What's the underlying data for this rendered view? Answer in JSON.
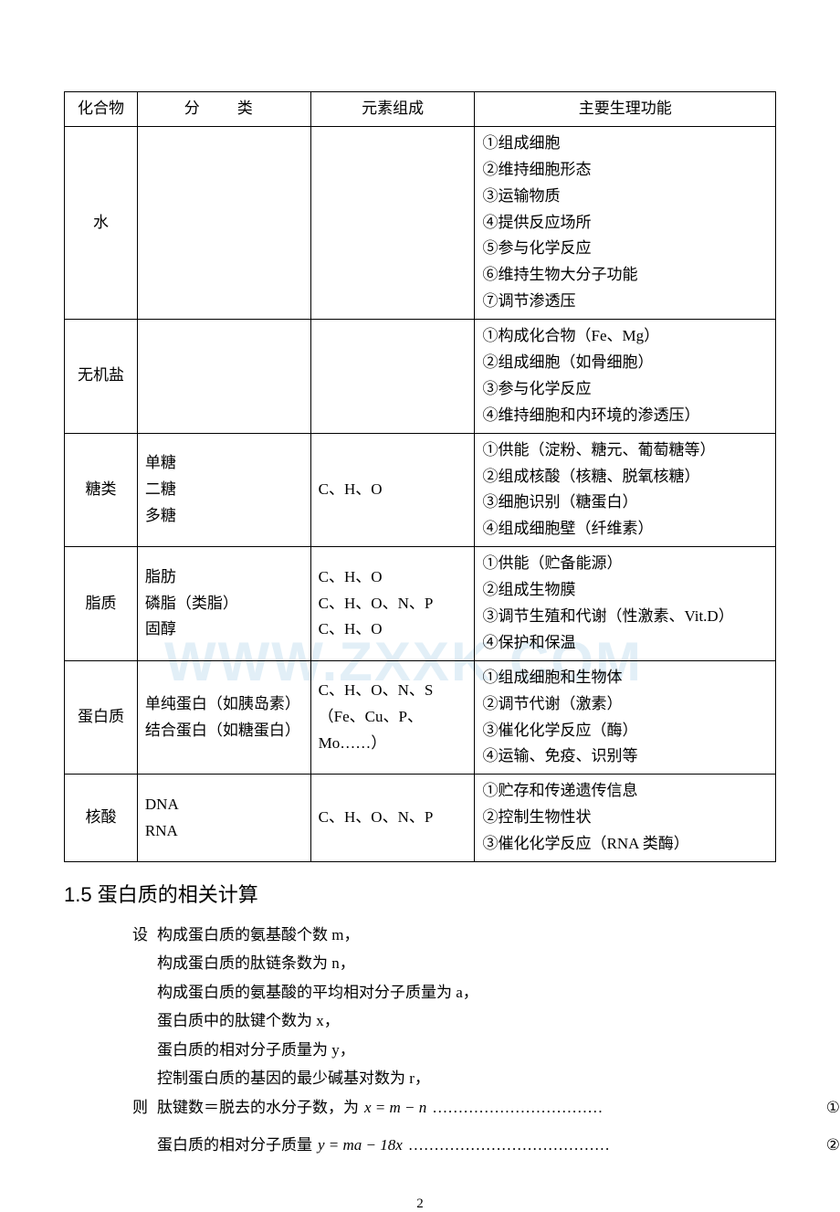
{
  "table": {
    "headers": [
      "化合物",
      "分　类",
      "元素组成",
      "主要生理功能"
    ],
    "rows": [
      {
        "compound": "水",
        "category": "",
        "elements": "",
        "functions": "①组成细胞\n②维持细胞形态\n③运输物质\n④提供反应场所\n⑤参与化学反应\n⑥维持生物大分子功能\n⑦调节渗透压"
      },
      {
        "compound": "无机盐",
        "category": "",
        "elements": "",
        "functions": "①构成化合物（Fe、Mg）\n②组成细胞（如骨细胞）\n③参与化学反应\n④维持细胞和内环境的渗透压）"
      },
      {
        "compound": "糖类",
        "category": "单糖\n二糖\n多糖",
        "elements": "C、H、O",
        "functions": "①供能（淀粉、糖元、葡萄糖等）\n②组成核酸（核糖、脱氧核糖）\n③细胞识别（糖蛋白）\n④组成细胞壁（纤维素）"
      },
      {
        "compound": "脂质",
        "category": "脂肪\n磷脂（类脂）\n固醇",
        "elements": "C、H、O\nC、H、O、N、P\nC、H、O",
        "functions": "①供能（贮备能源）\n②组成生物膜\n③调节生殖和代谢（性激素、Vit.D）\n④保护和保温"
      },
      {
        "compound": "蛋白质",
        "category": "单纯蛋白（如胰岛素）\n结合蛋白（如糖蛋白）",
        "elements": "C、H、O、N、S\n（Fe、Cu、P、Mo……）",
        "functions": "①组成细胞和生物体\n②调节代谢（激素）\n③催化化学反应（酶）\n④运输、免疫、识别等"
      },
      {
        "compound": "核酸",
        "category": "DNA\nRNA",
        "elements": "C、H、O、N、P",
        "functions": "①贮存和传递遗传信息\n②控制生物性状\n③催化化学反应（RNA 类酶）"
      }
    ]
  },
  "section": {
    "number": "1.5",
    "title": "蛋白质的相关计算"
  },
  "calc": {
    "label_set": "设",
    "label_then": "则",
    "lines": [
      "构成蛋白质的氨基酸个数 m，",
      "构成蛋白质的肽链条数为 n，",
      "构成蛋白质的氨基酸的平均相对分子质量为 a，",
      "蛋白质中的肽键个数为 x，",
      "蛋白质的相对分子质量为 y，",
      "控制蛋白质的基因的最少碱基对数为 r，"
    ],
    "formula1_text": "肽键数＝脱去的水分子数，为",
    "formula1_expr": "x = m − n",
    "formula1_dots": "……………………………",
    "formula1_num": "①",
    "formula2_text": "蛋白质的相对分子质量",
    "formula2_expr": "y = ma − 18x",
    "formula2_dots": "…………………………………",
    "formula2_num": "②"
  },
  "watermark": "WWW.ZXXK.COM",
  "page_number": "2",
  "colors": {
    "text": "#000000",
    "border": "#000000",
    "background": "#ffffff",
    "watermark": "#d6e9f5"
  }
}
